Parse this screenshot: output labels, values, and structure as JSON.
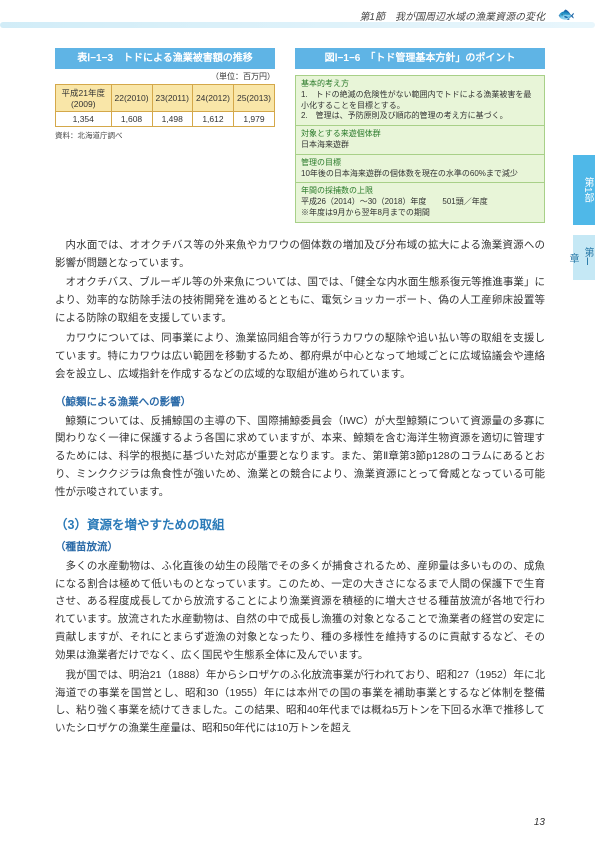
{
  "header": {
    "section": "第1節　我が国周辺水域の漁業資源の変化"
  },
  "table": {
    "title": "表Ⅰ−1−3　トドによる漁業被害額の推移",
    "unit": "（単位：百万円）",
    "headers": [
      "平成21年度(2009)",
      "22(2010)",
      "23(2011)",
      "24(2012)",
      "25(2013)"
    ],
    "row": [
      "1,354",
      "1,608",
      "1,498",
      "1,612",
      "1,979"
    ],
    "source": "資料：北海道庁調べ"
  },
  "policy": {
    "title": "図Ⅰ−1−6　「トド管理基本方針」のポイント",
    "items": [
      {
        "label": "基本的考え方",
        "text": "1.　トドの絶滅の危険性がない範囲内でトドによる漁業被害を最小化することを目標とする。\n2.　管理は、予防原則及び順応的管理の考え方に基づく。"
      },
      {
        "label": "対象とする来遊個体群",
        "text": "日本海来遊群"
      },
      {
        "label": "管理の目標",
        "text": "10年後の日本海来遊群の個体数を現在の水準の60%まで減少"
      },
      {
        "label": "年間の採捕数の上限",
        "text": "平成26（2014）〜30（2018）年度　　501頭／年度\n※年度は9月から翌年8月までの期間"
      }
    ]
  },
  "sidetabs": {
    "t1": "第1部",
    "t2": "第Ⅰ章"
  },
  "paragraphs": {
    "p1": "内水面では、オオクチバス等の外来魚やカワウの個体数の増加及び分布域の拡大による漁業資源への影響が問題となっています。",
    "p2": "オオクチバス、ブルーギル等の外来魚については、国では、「健全な内水面生態系復元等推進事業」により、効率的な防除手法の技術開発を進めるとともに、電気ショッカーボート、偽の人工産卵床設置等による防除の取組を支援しています。",
    "p3": "カワウについては、同事業により、漁業協同組合等が行うカワウの駆除や追い払い等の取組を支援しています。特にカワウは広い範囲を移動するため、都府県が中心となって地域ごとに広域協議会や連絡会を設立し、広域指針を作成するなどの広域的な取組が進められています。",
    "h1": "（鯨類による漁業への影響）",
    "p4": "鯨類については、反捕鯨国の主導の下、国際捕鯨委員会（IWC）が大型鯨類について資源量の多寡に関わりなく一律に保護するよう各国に求めていますが、本来、鯨類を含む海洋生物資源を適切に管理するためには、科学的根拠に基づいた対応が重要となります。また、第Ⅱ章第3節p128のコラムにあるとおり、ミンククジラは魚食性が強いため、漁業との競合により、漁業資源にとって脅威となっている可能性が示唆されています。",
    "h2": "（3）資源を増やすための取組",
    "h3": "（種苗放流）",
    "p5": "多くの水産動物は、ふ化直後の幼生の段階でその多くが捕食されるため、産卵量は多いものの、成魚になる割合は極めて低いものとなっています。このため、一定の大きさになるまで人間の保護下で生育させ、ある程度成長してから放流することにより漁業資源を積極的に増大させる種苗放流が各地で行われています。放流された水産動物は、自然の中で成長し漁獲の対象となることで漁業者の経営の安定に貢献しますが、それにとまらず遊漁の対象となったり、種の多様性を維持するのに貢献するなど、その効果は漁業者だけでなく、広く国民や生態系全体に及んでいます。",
    "p6": "我が国では、明治21（1888）年からシロザケのふ化放流事業が行われており、昭和27（1952）年に北海道での事業を国営とし、昭和30（1955）年には本州での国の事業を補助事業とするなど体制を整備し、粘り強く事業を続けてきました。この結果、昭和40年代までは概ね5万トンを下回る水準で推移していたシロザケの漁業生産量は、昭和50年代には10万トンを超え"
  },
  "pageNum": "13"
}
